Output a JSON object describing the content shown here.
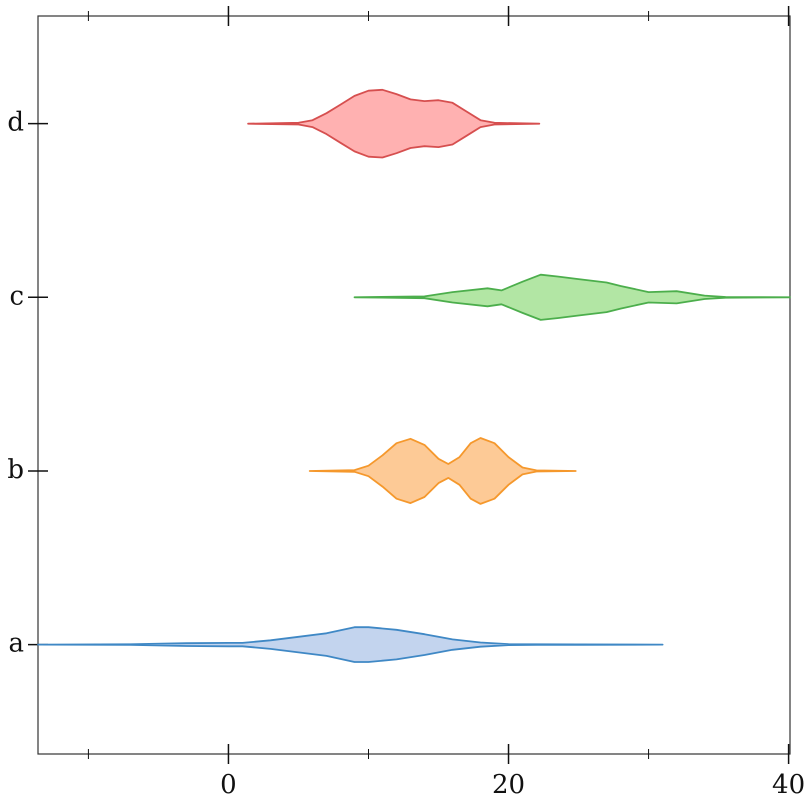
{
  "chart_data": {
    "type": "violin",
    "orientation": "horizontal",
    "categories": [
      "a",
      "b",
      "c",
      "d"
    ],
    "xlim": [
      -13.6,
      40.1
    ],
    "xticks": [
      0,
      20,
      40
    ],
    "xminorticks": [
      -10,
      10,
      30
    ],
    "ylim": [
      -0.63,
      3.62
    ],
    "series": [
      {
        "name": "a",
        "color": "#3f88c5",
        "fill": "#c3d4ee",
        "x": [
          -13.6,
          -7,
          -3,
          0,
          1,
          3,
          5,
          7,
          9,
          10,
          12,
          14,
          16,
          18,
          20,
          22,
          25,
          31
        ],
        "density": [
          0,
          0.002,
          0.008,
          0.01,
          0.01,
          0.025,
          0.045,
          0.065,
          0.1,
          0.1,
          0.085,
          0.06,
          0.03,
          0.012,
          0.003,
          0.002,
          0.001,
          0
        ]
      },
      {
        "name": "b",
        "color": "#f5982c",
        "fill": "#fdca96",
        "x": [
          5.8,
          9,
          10,
          11,
          12,
          13,
          14,
          15,
          15.7,
          16.5,
          17.3,
          18,
          19,
          20,
          21,
          22,
          24.8
        ],
        "density": [
          0,
          0.005,
          0.03,
          0.09,
          0.16,
          0.185,
          0.15,
          0.07,
          0.04,
          0.08,
          0.16,
          0.19,
          0.16,
          0.08,
          0.02,
          0.003,
          0
        ]
      },
      {
        "name": "c",
        "color": "#4cae4c",
        "fill": "#b2e6a4",
        "x": [
          9,
          14,
          16,
          18.5,
          19.5,
          21,
          22.3,
          23.5,
          25,
          27,
          28,
          30,
          32,
          34,
          35.5,
          40.1
        ],
        "density": [
          0,
          0.005,
          0.03,
          0.052,
          0.04,
          0.09,
          0.13,
          0.12,
          0.105,
          0.085,
          0.065,
          0.03,
          0.035,
          0.01,
          0.002,
          0
        ]
      },
      {
        "name": "d",
        "color": "#d64f4f",
        "fill": "#ffb1b1",
        "x": [
          1.4,
          5,
          6,
          7,
          8,
          9,
          10,
          11,
          12,
          13,
          14,
          15,
          16,
          17,
          18,
          19,
          22.2
        ],
        "density": [
          0,
          0.005,
          0.02,
          0.06,
          0.11,
          0.16,
          0.19,
          0.195,
          0.17,
          0.14,
          0.13,
          0.135,
          0.12,
          0.07,
          0.02,
          0.005,
          0
        ]
      }
    ]
  }
}
